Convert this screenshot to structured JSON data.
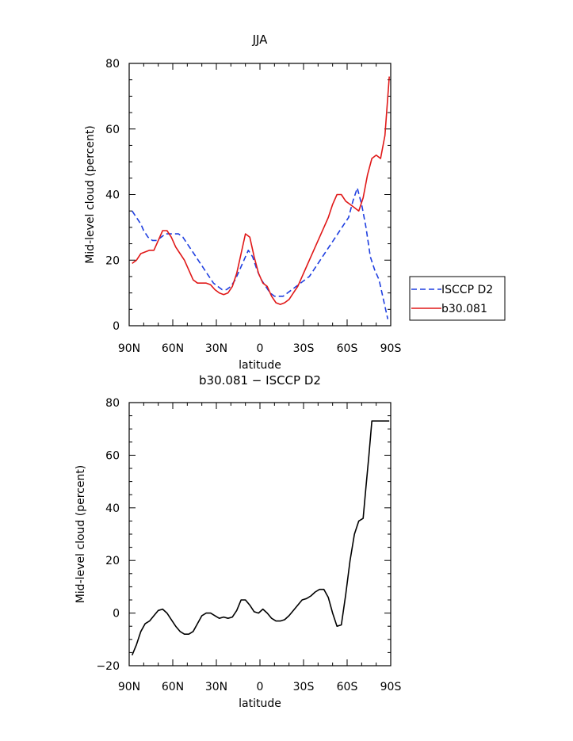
{
  "chart_data": [
    {
      "type": "line",
      "title": "JJA",
      "xlabel": "latitude",
      "ylabel": "Mid-level cloud (percent)",
      "xlim": [
        -90,
        90
      ],
      "ylim": [
        0,
        80
      ],
      "x_ticks": [
        -90,
        -60,
        -30,
        0,
        30,
        60,
        90
      ],
      "x_tick_labels": [
        "90N",
        "60N",
        "30N",
        "0",
        "30S",
        "60S",
        "90S"
      ],
      "y_ticks": [
        0,
        20,
        40,
        60,
        80
      ],
      "y_tick_labels": [
        "0",
        "20",
        "40",
        "60",
        "80"
      ],
      "legend_position": "right",
      "series": [
        {
          "name": "ISCCP D2",
          "color": "#1f3fe0",
          "dash": "dashed",
          "x": [
            -88,
            -85,
            -82,
            -80,
            -77,
            -74,
            -71,
            -68,
            -65,
            -62,
            -59,
            -56,
            -53,
            -50,
            -47,
            -44,
            -41,
            -38,
            -35,
            -32,
            -29,
            -26,
            -23,
            -20,
            -17,
            -14,
            -11,
            -8,
            -5,
            -2,
            1,
            4,
            7,
            10,
            13,
            16,
            19,
            22,
            25,
            28,
            31,
            34,
            37,
            40,
            43,
            46,
            49,
            52,
            55,
            58,
            61,
            64,
            67,
            70,
            73,
            76,
            79,
            82,
            85,
            88
          ],
          "values": [
            35,
            33,
            31,
            29,
            27,
            26,
            26,
            27,
            28,
            28,
            28,
            28,
            27,
            25,
            23,
            21,
            19,
            17,
            15,
            13,
            12,
            11,
            11,
            12,
            14,
            17,
            20,
            23,
            21,
            17,
            14,
            12,
            10,
            9,
            9,
            9,
            10,
            11,
            12,
            13,
            14,
            15,
            17,
            19,
            21,
            23,
            25,
            27,
            29,
            31,
            33,
            38,
            42,
            37,
            30,
            21,
            17,
            14,
            8,
            2
          ]
        },
        {
          "name": "b30.081",
          "color": "#e01818",
          "dash": "solid",
          "x": [
            -88,
            -85,
            -82,
            -79,
            -76,
            -73,
            -70,
            -67,
            -64,
            -61,
            -58,
            -55,
            -52,
            -49,
            -46,
            -43,
            -40,
            -37,
            -34,
            -31,
            -28,
            -25,
            -22,
            -19,
            -16,
            -13,
            -10,
            -7,
            -4,
            -1,
            2,
            5,
            8,
            11,
            14,
            17,
            20,
            23,
            26,
            29,
            32,
            35,
            38,
            41,
            44,
            47,
            50,
            53,
            56,
            59,
            62,
            65,
            68,
            71,
            74,
            77,
            80,
            83,
            86,
            89
          ],
          "values": [
            19,
            20,
            22,
            22.5,
            23,
            23,
            26,
            29,
            29,
            27,
            24,
            22,
            20,
            17,
            14,
            13,
            13,
            13,
            12.5,
            11,
            10,
            9.5,
            10,
            12,
            16,
            22,
            28,
            27,
            21,
            16,
            13,
            12,
            9,
            7,
            6.5,
            7,
            8,
            10,
            12,
            15,
            18,
            21,
            24,
            27,
            30,
            33,
            37,
            40,
            40,
            38,
            37,
            36,
            35,
            39,
            46,
            51,
            52,
            51,
            58,
            76
          ]
        }
      ]
    },
    {
      "type": "line",
      "title": "b30.081 − ISCCP D2",
      "xlabel": "latitude",
      "ylabel": "Mid-level cloud (percent)",
      "xlim": [
        -90,
        90
      ],
      "ylim": [
        -20,
        80
      ],
      "x_ticks": [
        -90,
        -60,
        -30,
        0,
        30,
        60,
        90
      ],
      "x_tick_labels": [
        "90N",
        "60N",
        "30N",
        "0",
        "30S",
        "60S",
        "90S"
      ],
      "y_ticks": [
        -20,
        0,
        20,
        40,
        60,
        80
      ],
      "y_tick_labels": [
        "−20",
        "0",
        "20",
        "40",
        "60",
        "80"
      ],
      "series": [
        {
          "color": "#000000",
          "dash": "solid",
          "x": [
            -88,
            -85,
            -82,
            -79,
            -76,
            -73,
            -70,
            -67,
            -64,
            -61,
            -58,
            -55,
            -52,
            -49,
            -46,
            -43,
            -40,
            -37,
            -34,
            -31,
            -28,
            -25,
            -22,
            -19,
            -16,
            -13,
            -10,
            -7,
            -4,
            -1,
            2,
            5,
            8,
            11,
            14,
            17,
            20,
            23,
            26,
            29,
            32,
            35,
            38,
            41,
            44,
            47,
            50,
            53,
            56,
            59,
            62,
            65,
            68,
            71,
            73,
            75,
            77,
            80,
            83,
            85,
            87,
            89
          ],
          "values": [
            -16,
            -12,
            -7,
            -4,
            -3,
            -1,
            1,
            1.5,
            0,
            -2.5,
            -5,
            -7,
            -8,
            -8,
            -7,
            -4,
            -1,
            0,
            0,
            -1,
            -2,
            -1.5,
            -2,
            -1.5,
            1,
            5,
            5,
            3,
            0.5,
            0,
            1.5,
            0,
            -2,
            -3,
            -3,
            -2.5,
            -1,
            1,
            3,
            5,
            5.5,
            6.5,
            8,
            9,
            9,
            6,
            0,
            -5,
            -4.5,
            7,
            20,
            30,
            35,
            36,
            48,
            60,
            73,
            73,
            73,
            73,
            73,
            73
          ]
        }
      ]
    }
  ]
}
